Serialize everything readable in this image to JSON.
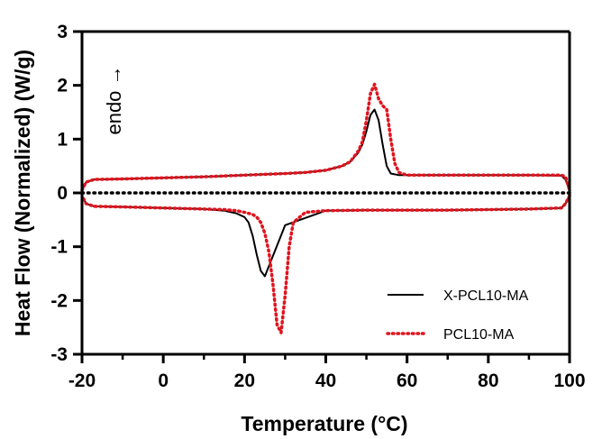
{
  "chart_data": {
    "type": "line",
    "xlabel": "Temperature (°C)",
    "ylabel": "Heat Flow (Normalized) (W/g)",
    "xlim": [
      -20,
      100
    ],
    "ylim": [
      -3,
      3
    ],
    "xticks": [
      -20,
      0,
      20,
      40,
      60,
      80,
      100
    ],
    "yticks": [
      -3,
      -2,
      -1,
      0,
      1,
      2,
      3
    ],
    "grid": false,
    "legend_position": "bottom-right",
    "annotation": "endo →",
    "baseline": {
      "y": 0,
      "style": "dotted",
      "color": "#000000"
    },
    "series": [
      {
        "name": "X-PCL10-MA",
        "color": "#000000",
        "style": "solid",
        "heating": {
          "x": [
            -20,
            -19,
            -17,
            -10,
            0,
            10,
            20,
            30,
            35,
            40,
            44,
            46,
            48,
            49,
            50,
            51,
            52,
            53,
            54,
            55,
            56,
            58,
            60,
            70,
            80,
            90,
            98,
            99,
            100
          ],
          "y": [
            0.05,
            0.2,
            0.25,
            0.26,
            0.28,
            0.3,
            0.33,
            0.36,
            0.38,
            0.42,
            0.5,
            0.58,
            0.75,
            0.9,
            1.15,
            1.45,
            1.55,
            1.35,
            0.9,
            0.5,
            0.36,
            0.33,
            0.33,
            0.33,
            0.33,
            0.33,
            0.32,
            0.25,
            0.05
          ]
        },
        "cooling": {
          "x": [
            100,
            99,
            98,
            90,
            80,
            70,
            60,
            50,
            40,
            30,
            25,
            24,
            23,
            22,
            21,
            20,
            18,
            15,
            10,
            0,
            -10,
            -17,
            -19,
            -20
          ],
          "y": [
            -0.05,
            -0.2,
            -0.28,
            -0.3,
            -0.31,
            -0.32,
            -0.32,
            -0.32,
            -0.33,
            -0.6,
            -1.55,
            -1.45,
            -1.15,
            -0.8,
            -0.55,
            -0.45,
            -0.38,
            -0.33,
            -0.3,
            -0.28,
            -0.26,
            -0.25,
            -0.2,
            -0.05
          ]
        }
      },
      {
        "name": "PCL10-MA",
        "color": "#e0141e",
        "style": "dotted",
        "heating": {
          "x": [
            -20,
            -19,
            -17,
            -10,
            0,
            10,
            20,
            30,
            35,
            40,
            44,
            46,
            48,
            49,
            50,
            51,
            52,
            53,
            54,
            55,
            56,
            57,
            58,
            60,
            70,
            80,
            90,
            98,
            99,
            100
          ],
          "y": [
            0.05,
            0.2,
            0.25,
            0.26,
            0.28,
            0.3,
            0.33,
            0.36,
            0.38,
            0.42,
            0.5,
            0.58,
            0.78,
            0.95,
            1.35,
            1.85,
            2.02,
            1.75,
            1.62,
            1.55,
            1.0,
            0.55,
            0.38,
            0.33,
            0.33,
            0.33,
            0.33,
            0.33,
            0.3,
            0.05
          ]
        },
        "cooling": {
          "x": [
            100,
            99,
            98,
            90,
            80,
            70,
            60,
            50,
            40,
            35,
            32,
            31,
            30,
            29,
            28,
            27,
            26,
            25,
            24,
            23,
            22,
            20,
            18,
            15,
            10,
            0,
            -10,
            -17,
            -19,
            -20
          ],
          "y": [
            -0.05,
            -0.2,
            -0.28,
            -0.3,
            -0.31,
            -0.32,
            -0.32,
            -0.32,
            -0.33,
            -0.36,
            -0.55,
            -1.0,
            -1.9,
            -2.6,
            -2.45,
            -1.7,
            -1.1,
            -0.75,
            -0.55,
            -0.45,
            -0.4,
            -0.36,
            -0.33,
            -0.31,
            -0.3,
            -0.28,
            -0.26,
            -0.25,
            -0.2,
            -0.05
          ]
        }
      }
    ]
  }
}
